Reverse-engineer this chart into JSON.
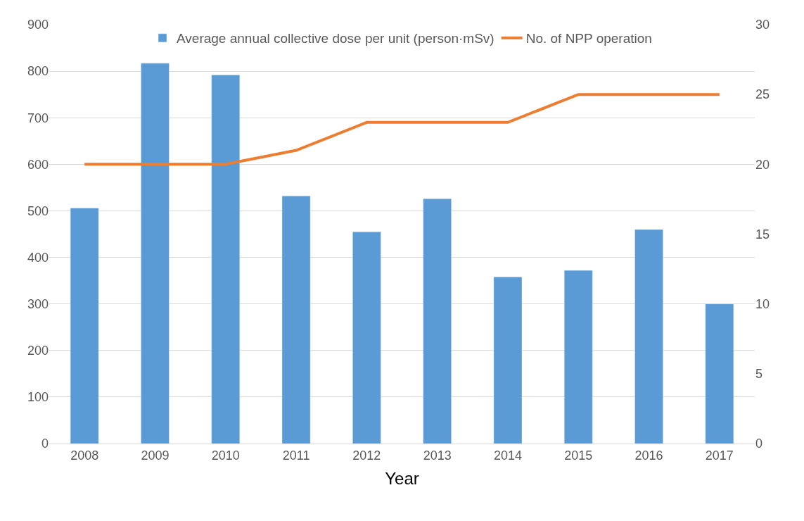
{
  "chart_data": {
    "type": "bar",
    "xlabel": "Year",
    "categories": [
      "2008",
      "2009",
      "2010",
      "2011",
      "2012",
      "2013",
      "2014",
      "2015",
      "2016",
      "2017"
    ],
    "series": [
      {
        "name": "Average annual collective dose per unit (person·mSv)",
        "color": "#5b9bd5",
        "values": [
          506,
          817,
          792,
          532,
          455,
          526,
          358,
          372,
          460,
          300
        ]
      },
      {
        "name": "No. of NPP operation",
        "type": "line",
        "axis": "y2",
        "color": "#ed7d31",
        "values": [
          20,
          20,
          20,
          21,
          23,
          23,
          23,
          25,
          25,
          25
        ]
      }
    ],
    "ylim": [
      0,
      900
    ],
    "yticks": [
      0,
      100,
      200,
      300,
      400,
      500,
      600,
      700,
      800,
      900
    ],
    "y2lim": [
      0,
      30
    ],
    "y2ticks": [
      0,
      5,
      10,
      15,
      20,
      25,
      30
    ],
    "grid": "y",
    "legend": "top",
    "marker": "none",
    "line_style": "solid"
  }
}
